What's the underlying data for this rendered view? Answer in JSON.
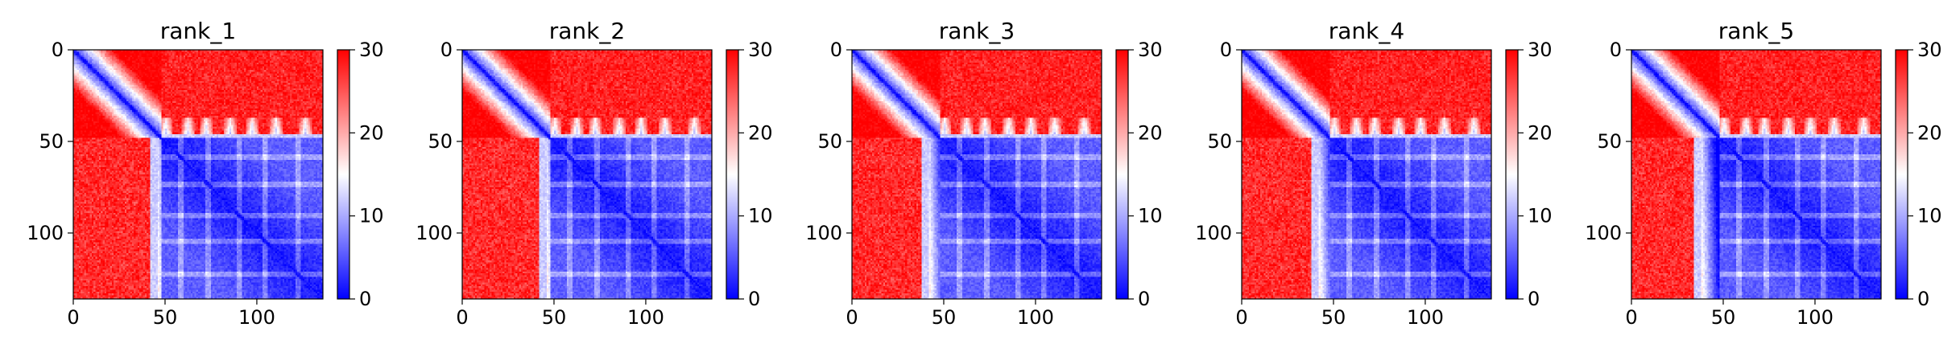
{
  "chart_data": [
    {
      "type": "heatmap",
      "title": "rank_1",
      "xlabel": "",
      "ylabel": "",
      "xlim": [
        0,
        136
      ],
      "ylim": [
        136,
        0
      ],
      "xticks": [
        0,
        50,
        100
      ],
      "yticks": [
        0,
        50,
        100
      ],
      "colorbar": {
        "min": 0,
        "max": 30,
        "ticks": [
          0,
          10,
          20,
          30
        ],
        "colors": [
          "#0000ff",
          "#ffffff",
          "#ff0000"
        ]
      },
      "features": {
        "domain_boundary": 48,
        "boundary_left_edge": 42
      }
    },
    {
      "type": "heatmap",
      "title": "rank_2",
      "xlabel": "",
      "ylabel": "",
      "xlim": [
        0,
        136
      ],
      "ylim": [
        136,
        0
      ],
      "xticks": [
        0,
        50,
        100
      ],
      "yticks": [
        0,
        50,
        100
      ],
      "colorbar": {
        "min": 0,
        "max": 30,
        "ticks": [
          0,
          10,
          20,
          30
        ],
        "colors": [
          "#0000ff",
          "#ffffff",
          "#ff0000"
        ]
      },
      "features": {
        "domain_boundary": 48,
        "boundary_left_edge": 42
      }
    },
    {
      "type": "heatmap",
      "title": "rank_3",
      "xlabel": "",
      "ylabel": "",
      "xlim": [
        0,
        136
      ],
      "ylim": [
        136,
        0
      ],
      "xticks": [
        0,
        50,
        100
      ],
      "yticks": [
        0,
        50,
        100
      ],
      "colorbar": {
        "min": 0,
        "max": 30,
        "ticks": [
          0,
          10,
          20,
          30
        ],
        "colors": [
          "#0000ff",
          "#ffffff",
          "#ff0000"
        ]
      },
      "features": {
        "domain_boundary": 48,
        "boundary_left_edge": 38
      }
    },
    {
      "type": "heatmap",
      "title": "rank_4",
      "xlabel": "",
      "ylabel": "",
      "xlim": [
        0,
        136
      ],
      "ylim": [
        136,
        0
      ],
      "xticks": [
        0,
        50,
        100
      ],
      "yticks": [
        0,
        50,
        100
      ],
      "colorbar": {
        "min": 0,
        "max": 30,
        "ticks": [
          0,
          10,
          20,
          30
        ],
        "colors": [
          "#0000ff",
          "#ffffff",
          "#ff0000"
        ]
      },
      "features": {
        "domain_boundary": 48,
        "boundary_left_edge": 38
      }
    },
    {
      "type": "heatmap",
      "title": "rank_5",
      "xlabel": "",
      "ylabel": "",
      "xlim": [
        0,
        136
      ],
      "ylim": [
        136,
        0
      ],
      "xticks": [
        0,
        50,
        100
      ],
      "yticks": [
        0,
        50,
        100
      ],
      "colorbar": {
        "min": 0,
        "max": 30,
        "ticks": [
          0,
          10,
          20,
          30
        ],
        "colors": [
          "#0000ff",
          "#ffffff",
          "#ff0000"
        ]
      },
      "features": {
        "domain_boundary": 48,
        "boundary_left_edge": 34
      }
    }
  ]
}
